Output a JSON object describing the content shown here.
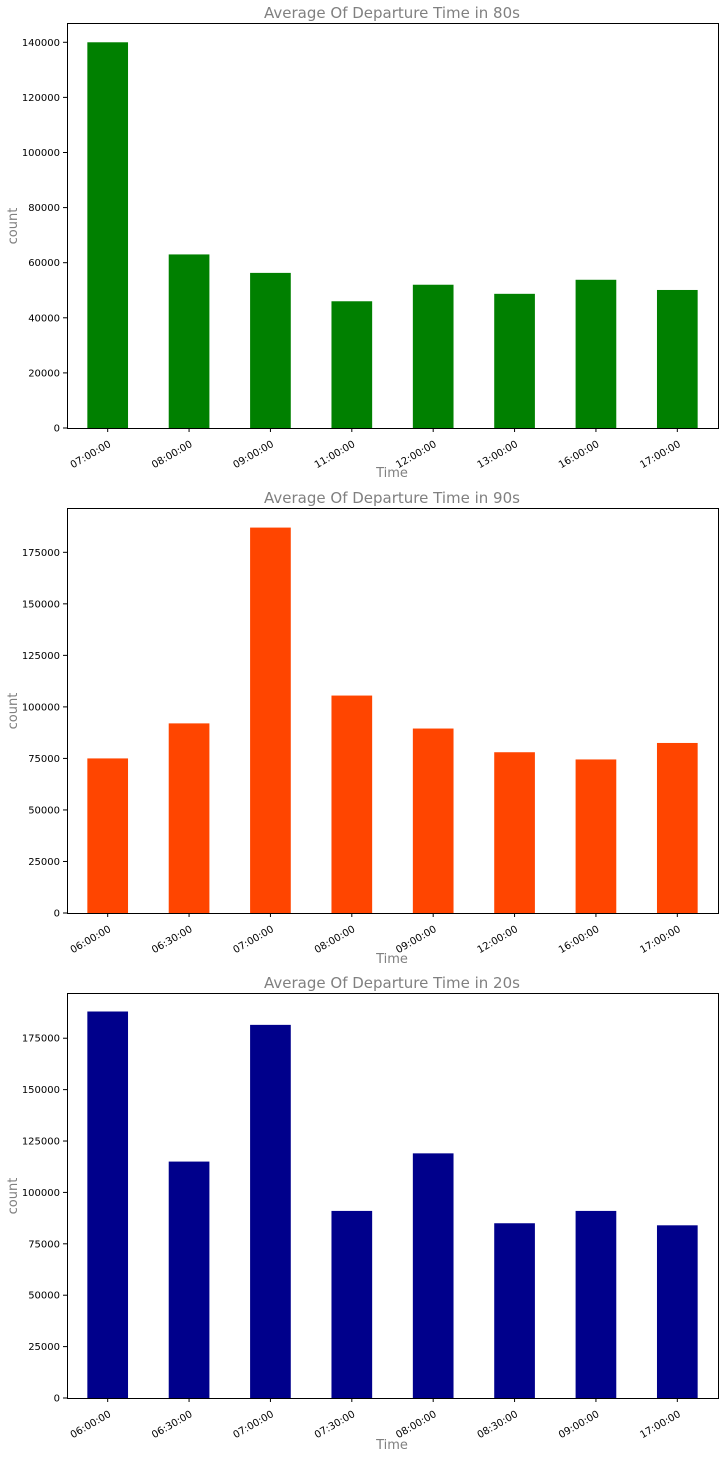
{
  "chart_data": [
    {
      "type": "bar",
      "title": "Average Of Departure Time in 80s",
      "xlabel": "Time",
      "ylabel": "count",
      "color": "#008000",
      "categories": [
        "07:00:00",
        "08:00:00",
        "09:00:00",
        "11:00:00",
        "12:00:00",
        "13:00:00",
        "16:00:00",
        "17:00:00"
      ],
      "values": [
        140000,
        63000,
        56300,
        46000,
        52000,
        48700,
        53800,
        50100
      ],
      "ylim": [
        0,
        147000
      ],
      "yticks": [
        0,
        20000,
        40000,
        60000,
        80000,
        100000,
        120000,
        140000
      ],
      "grid": false,
      "legend": "none"
    },
    {
      "type": "bar",
      "title": "Average Of Departure Time in 90s",
      "xlabel": "Time",
      "ylabel": "count",
      "color": "#FF4500",
      "categories": [
        "06:00:00",
        "06:30:00",
        "07:00:00",
        "08:00:00",
        "09:00:00",
        "12:00:00",
        "16:00:00",
        "17:00:00"
      ],
      "values": [
        75000,
        92000,
        187000,
        105500,
        89500,
        78000,
        74500,
        82500
      ],
      "ylim": [
        0,
        196500
      ],
      "yticks": [
        0,
        25000,
        50000,
        75000,
        100000,
        125000,
        150000,
        175000
      ],
      "grid": false,
      "legend": "none"
    },
    {
      "type": "bar",
      "title": "Average Of Departure Time in 20s",
      "xlabel": "Time",
      "ylabel": "count",
      "color": "#00008B",
      "categories": [
        "06:00:00",
        "06:30:00",
        "07:00:00",
        "07:30:00",
        "08:00:00",
        "08:30:00",
        "09:00:00",
        "17:00:00"
      ],
      "values": [
        188000,
        115000,
        181500,
        91000,
        119000,
        85000,
        91000,
        84000
      ],
      "ylim": [
        0,
        197000
      ],
      "yticks": [
        0,
        25000,
        50000,
        75000,
        100000,
        125000,
        150000,
        175000
      ],
      "grid": false,
      "legend": "none"
    }
  ]
}
